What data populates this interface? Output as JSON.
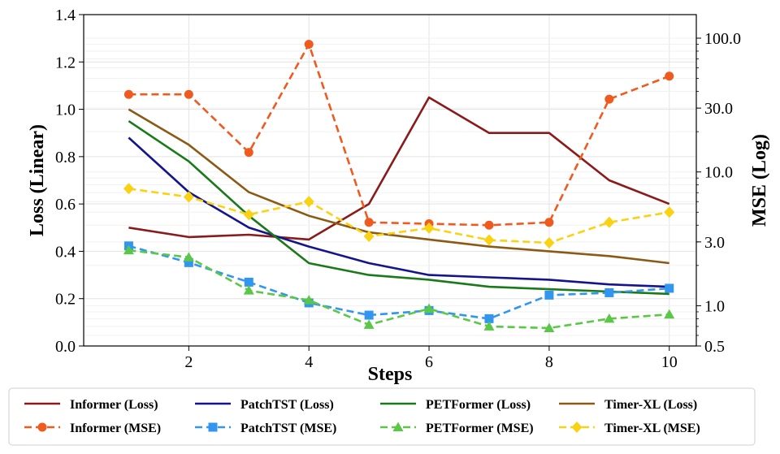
{
  "chart_data": {
    "type": "line",
    "title": "",
    "xlabel": "Steps",
    "ylabel_left": "Loss (Linear)",
    "ylabel_right": "MSE (Log)",
    "x": [
      1,
      2,
      3,
      4,
      5,
      6,
      7,
      8,
      9,
      10
    ],
    "x_ticks": [
      "2",
      "4",
      "6",
      "8",
      "10"
    ],
    "xlim": [
      0.25,
      10.45
    ],
    "ylim_left": [
      0.0,
      1.4
    ],
    "y_ticks_left": [
      "0.0",
      "0.2",
      "0.4",
      "0.6",
      "0.8",
      "1.0",
      "1.2",
      "1.4"
    ],
    "ylim_right": [
      0.5,
      150
    ],
    "y_scale_right": "log",
    "y_ticks_right": [
      "0.5",
      "1.0",
      "3.0",
      "10.0",
      "30.0",
      "100.0"
    ],
    "grid": true,
    "legend_position": "bottom",
    "series": [
      {
        "name": "Informer (Loss)",
        "axis": "left",
        "style": "solid",
        "marker": "none",
        "color": "#8b1a1a",
        "values": [
          0.5,
          0.46,
          0.47,
          0.45,
          0.6,
          1.05,
          0.9,
          0.9,
          0.7,
          0.6
        ]
      },
      {
        "name": "PatchTST (Loss)",
        "axis": "left",
        "style": "solid",
        "marker": "none",
        "color": "#14148c",
        "values": [
          0.88,
          0.65,
          0.5,
          0.42,
          0.35,
          0.3,
          0.29,
          0.28,
          0.26,
          0.25
        ]
      },
      {
        "name": "PETFormer (Loss)",
        "axis": "left",
        "style": "solid",
        "marker": "none",
        "color": "#1a7a1a",
        "values": [
          0.95,
          0.78,
          0.55,
          0.35,
          0.3,
          0.28,
          0.25,
          0.24,
          0.23,
          0.22
        ]
      },
      {
        "name": "Timer-XL (Loss)",
        "axis": "left",
        "style": "solid",
        "marker": "none",
        "color": "#8b5a14",
        "values": [
          1.0,
          0.85,
          0.65,
          0.55,
          0.48,
          0.45,
          0.42,
          0.4,
          0.38,
          0.35
        ]
      },
      {
        "name": "Informer (MSE)",
        "axis": "right",
        "style": "dashed",
        "marker": "circle",
        "color": "#f05a1e",
        "values": [
          38.0,
          38.0,
          14.0,
          90.0,
          4.2,
          4.1,
          4.0,
          4.2,
          35.0,
          52.0
        ]
      },
      {
        "name": "PatchTST (MSE)",
        "axis": "right",
        "style": "dashed",
        "marker": "square",
        "color": "#3296f0",
        "values": [
          2.8,
          2.1,
          1.5,
          1.05,
          0.85,
          0.92,
          0.8,
          1.2,
          1.25,
          1.35
        ]
      },
      {
        "name": "PETFormer (MSE)",
        "axis": "right",
        "style": "dashed",
        "marker": "triangle",
        "color": "#5ac846",
        "values": [
          2.6,
          2.3,
          1.3,
          1.1,
          0.72,
          0.95,
          0.7,
          0.68,
          0.8,
          0.86
        ]
      },
      {
        "name": "Timer-XL (MSE)",
        "axis": "right",
        "style": "dashed",
        "marker": "diamond",
        "color": "#fad214",
        "values": [
          7.5,
          6.5,
          4.8,
          6.0,
          3.3,
          3.8,
          3.1,
          2.95,
          4.2,
          5.0
        ]
      }
    ]
  }
}
